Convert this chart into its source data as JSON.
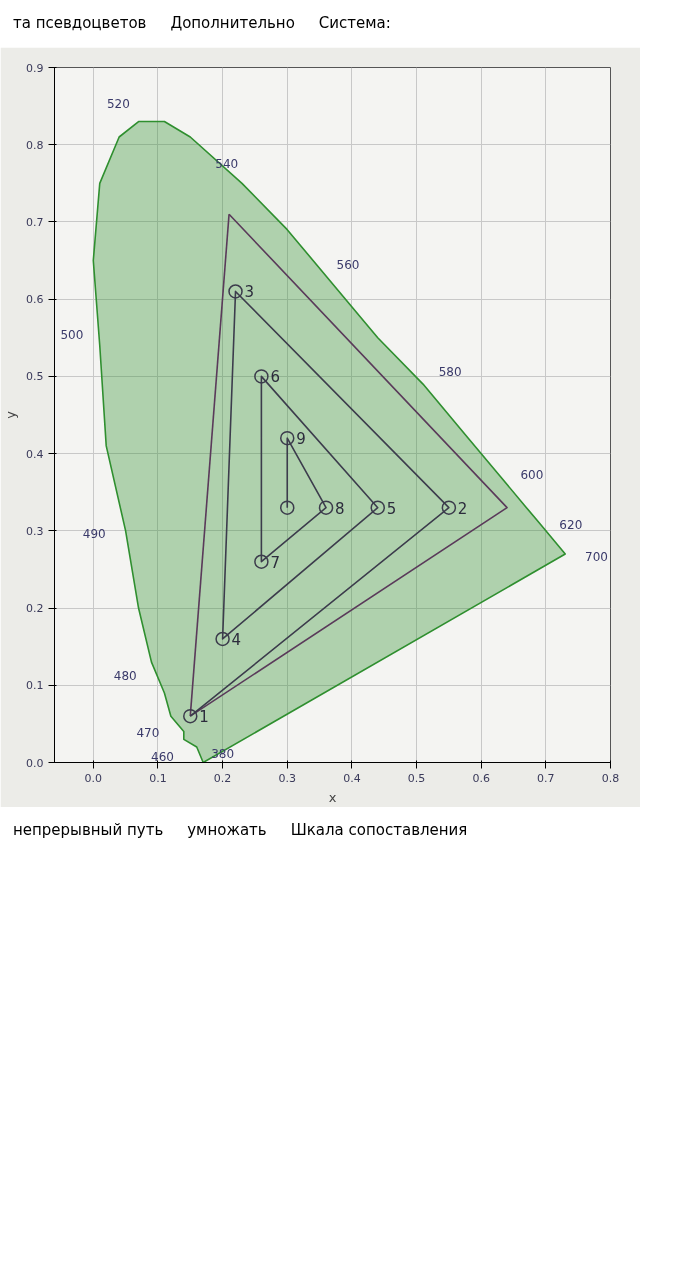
{
  "chart_data": {
    "type": "line",
    "xlabel": "x",
    "ylabel": "y",
    "xlim": [
      -0.06,
      0.8
    ],
    "ylim": [
      0,
      0.9
    ],
    "xticks": [
      {
        "value": 0,
        "label": "0.0"
      },
      0.1,
      0.2,
      0.3,
      0.4,
      0.5,
      0.6,
      0.7,
      0.8
    ],
    "yticks": [
      {
        "value": 0,
        "label": "0.0"
      },
      0.1,
      0.2,
      0.3,
      0.4,
      0.5,
      0.6,
      0.7,
      0.8,
      0.9
    ],
    "grid": true,
    "series": [
      {
        "type": "area",
        "color": "#2f8f2f",
        "marker": "none",
        "x": [
          0.17,
          0.16,
          0.14,
          0.14,
          0.12,
          0.11,
          0.09,
          0.07,
          0.05,
          0.02,
          0.01,
          0.0,
          0.01,
          0.04,
          0.07,
          0.11,
          0.15,
          0.23,
          0.3,
          0.37,
          0.44,
          0.51,
          0.58,
          0.63,
          0.67,
          0.69,
          0.72,
          0.73
        ],
        "values": [
          0.0,
          0.02,
          0.03,
          0.04,
          0.06,
          0.09,
          0.13,
          0.2,
          0.3,
          0.41,
          0.54,
          0.65,
          0.75,
          0.81,
          0.83,
          0.83,
          0.81,
          0.75,
          0.69,
          0.62,
          0.55,
          0.49,
          0.42,
          0.37,
          0.33,
          0.31,
          0.28,
          0.27
        ]
      },
      {
        "color": "#5a3a5a",
        "marker": "none",
        "x": [
          0.15,
          0.64,
          0.21
        ],
        "values": [
          0.06,
          0.33,
          0.71
        ]
      },
      {
        "color": "#5a3a5a",
        "marker": "none",
        "x": [
          0.21,
          0.15
        ],
        "values": [
          0.71,
          0.06
        ]
      },
      {
        "color": "#3c3c4c",
        "marker": "circle",
        "x": [
          0.15,
          0.55,
          0.22,
          0.2,
          0.44,
          0.26,
          0.26,
          0.36,
          0.3,
          0.3
        ],
        "values": [
          0.06,
          0.33,
          0.61,
          0.16,
          0.33,
          0.5,
          0.26,
          0.33,
          0.42,
          0.33
        ]
      }
    ],
    "annotations": [
      "та псевдоцветов",
      "Дополнительно",
      "Система:",
      {
        "text": "380",
        "x": 0.17,
        "y": 0.0
      },
      {
        "text": "460",
        "x": 0.14,
        "y": 0.03
      },
      {
        "text": "470",
        "x": 0.12,
        "y": 0.06
      },
      {
        "text": "480",
        "x": 0.09,
        "y": 0.13
      },
      {
        "text": "490",
        "x": 0.05,
        "y": 0.3
      },
      {
        "text": "500",
        "x": 0.01,
        "y": 0.54
      },
      {
        "text": "520",
        "x": 0.07,
        "y": 0.83
      },
      {
        "text": "540",
        "x": 0.23,
        "y": 0.75
      },
      {
        "text": "560",
        "x": 0.37,
        "y": 0.62
      },
      {
        "text": "580",
        "x": 0.51,
        "y": 0.49
      },
      {
        "text": "600",
        "x": 0.63,
        "y": 0.37
      },
      {
        "text": "620",
        "x": 0.69,
        "y": 0.31
      },
      {
        "text": "700",
        "x": 0.73,
        "y": 0.27
      },
      {
        "text": "1",
        "x": 0.15,
        "y": 0.06
      },
      {
        "text": "2",
        "x": 0.55,
        "y": 0.33
      },
      {
        "text": "3",
        "x": 0.22,
        "y": 0.61
      },
      {
        "text": "4",
        "x": 0.2,
        "y": 0.16
      },
      {
        "text": "5",
        "x": 0.44,
        "y": 0.33
      },
      {
        "text": "6",
        "x": 0.26,
        "y": 0.5
      },
      {
        "text": "7",
        "x": 0.26,
        "y": 0.26
      },
      {
        "text": "8",
        "x": 0.36,
        "y": 0.33
      },
      {
        "text": "9",
        "x": 0.3,
        "y": 0.42
      },
      "непрерывный путь",
      "умножать",
      "Шкала сопоставления"
    ]
  }
}
